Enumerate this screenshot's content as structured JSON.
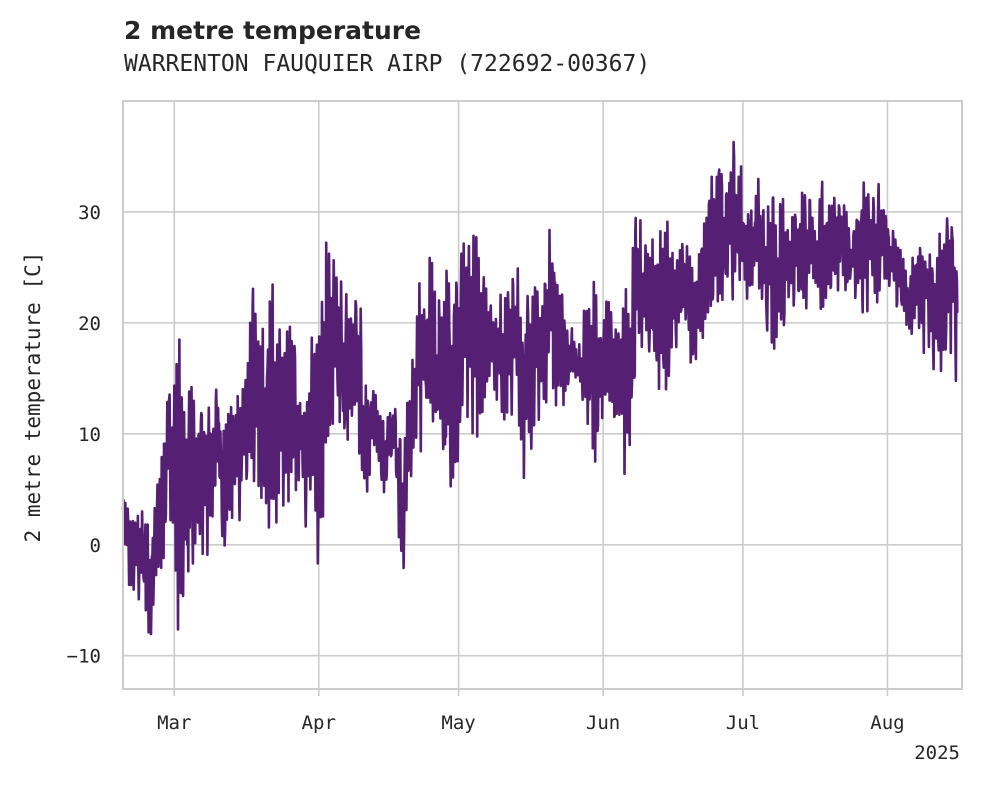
{
  "chart_data": {
    "type": "line",
    "title": "2 metre temperature",
    "subtitle": "WARRENTON FAUQUIER AIRP (722692-00367)",
    "ylabel": "2 metre temperature [C]",
    "xlabel": "",
    "x_tick_labels": [
      "Mar",
      "Apr",
      "May",
      "Jun",
      "Jul",
      "Aug"
    ],
    "x_tick_dates": [
      "2025-03-01",
      "2025-04-01",
      "2025-05-01",
      "2025-06-01",
      "2025-07-01",
      "2025-08-01"
    ],
    "x_offset_label": "2025",
    "xlim": [
      "2025-02-18",
      "2025-08-17"
    ],
    "ylim": [
      -13,
      40
    ],
    "y_ticks": [
      -10,
      0,
      10,
      20,
      30
    ],
    "y_tick_labels": [
      "−10",
      "0",
      "10",
      "20",
      "30"
    ],
    "grid": true,
    "line_color": "#551f73",
    "series": [
      {
        "x": [
          "2025-02-18",
          "2025-02-20",
          "2025-02-22",
          "2025-02-24",
          "2025-02-26",
          "2025-02-28",
          "2025-03-02",
          "2025-03-04",
          "2025-03-06",
          "2025-03-08",
          "2025-03-10",
          "2025-03-12",
          "2025-03-14",
          "2025-03-16",
          "2025-03-18",
          "2025-03-20",
          "2025-03-22",
          "2025-03-24",
          "2025-03-26",
          "2025-03-28",
          "2025-03-30",
          "2025-04-01",
          "2025-04-03",
          "2025-04-05",
          "2025-04-07",
          "2025-04-09",
          "2025-04-11",
          "2025-04-13",
          "2025-04-15",
          "2025-04-17",
          "2025-04-19",
          "2025-04-21",
          "2025-04-23",
          "2025-04-25",
          "2025-04-27",
          "2025-04-29",
          "2025-05-01",
          "2025-05-03",
          "2025-05-05",
          "2025-05-07",
          "2025-05-09",
          "2025-05-11",
          "2025-05-13",
          "2025-05-15",
          "2025-05-17",
          "2025-05-19",
          "2025-05-21",
          "2025-05-23",
          "2025-05-25",
          "2025-05-27",
          "2025-05-29",
          "2025-05-31",
          "2025-06-02",
          "2025-06-04",
          "2025-06-06",
          "2025-06-08",
          "2025-06-10",
          "2025-06-12",
          "2025-06-14",
          "2025-06-16",
          "2025-06-18",
          "2025-06-20",
          "2025-06-22",
          "2025-06-24",
          "2025-06-26",
          "2025-06-28",
          "2025-06-30",
          "2025-07-02",
          "2025-07-04",
          "2025-07-06",
          "2025-07-08",
          "2025-07-10",
          "2025-07-12",
          "2025-07-14",
          "2025-07-16",
          "2025-07-18",
          "2025-07-20",
          "2025-07-22",
          "2025-07-24",
          "2025-07-26",
          "2025-07-28",
          "2025-07-30",
          "2025-08-01",
          "2025-08-03",
          "2025-08-05",
          "2025-08-07",
          "2025-08-09",
          "2025-08-11",
          "2025-08-13",
          "2025-08-15",
          "2025-08-16"
        ],
        "min": [
          0,
          -7,
          -5,
          -10,
          -5,
          3,
          -9,
          -6,
          -2,
          -3,
          4,
          -2,
          3,
          1,
          5,
          -1,
          1,
          2,
          4,
          3,
          0,
          -3,
          7,
          10,
          6,
          8,
          2,
          9,
          2,
          7,
          -4,
          7,
          8,
          7,
          8,
          3,
          6,
          10,
          9,
          14,
          13,
          10,
          11,
          4,
          9,
          12,
          13,
          11,
          14,
          12,
          6,
          7,
          11,
          8,
          5,
          13,
          16,
          14,
          12,
          15,
          19,
          16,
          17,
          19,
          21,
          21,
          22,
          21,
          22,
          18,
          16,
          19,
          21,
          20,
          22,
          20,
          22,
          23,
          22,
          19,
          20,
          21,
          23,
          21,
          18,
          19,
          17,
          15,
          15,
          17,
          13
        ],
        "max": [
          6,
          3,
          5,
          2,
          11,
          15,
          20,
          15,
          14,
          16,
          15,
          13,
          16,
          17,
          24,
          21,
          25,
          20,
          22,
          17,
          16,
          28,
          29,
          26,
          24,
          28,
          17,
          14,
          12,
          14,
          10,
          17,
          27,
          27,
          23,
          28,
          27,
          29,
          29,
          25,
          22,
          24,
          27,
          25,
          26,
          23,
          33,
          24,
          20,
          20,
          25,
          25,
          23,
          22,
          24,
          31,
          30,
          29,
          31,
          27,
          28,
          27,
          28,
          34,
          35,
          37,
          36,
          32,
          34,
          30,
          33,
          33,
          32,
          34,
          31,
          33,
          32,
          31,
          30,
          33,
          33,
          34,
          30,
          28,
          26,
          27,
          29,
          25,
          31,
          33,
          29
        ]
      }
    ]
  }
}
